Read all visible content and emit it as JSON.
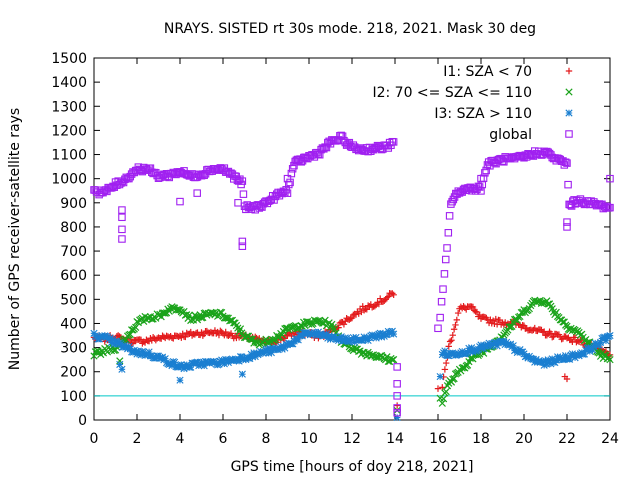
{
  "chart_data": {
    "type": "scatter",
    "title": "NRAYS. SISTED rt 30s mode. 218, 2021. Mask 30 deg",
    "xlabel": "GPS time [hours of doy 218, 2021]",
    "ylabel": "Number of GPS receiver-satellite rays",
    "xlim": [
      0,
      24
    ],
    "ylim": [
      0,
      1500
    ],
    "x_ticks": [
      "0",
      "2",
      "4",
      "6",
      "8",
      "10",
      "12",
      "14",
      "16",
      "18",
      "20",
      "22",
      "24"
    ],
    "y_ticks": [
      "0",
      "100",
      "200",
      "300",
      "400",
      "500",
      "600",
      "700",
      "800",
      "900",
      "1000",
      "1100",
      "1200",
      "1300",
      "1400",
      "1500"
    ],
    "reference_line": {
      "y": 100,
      "color": "#00c8c8"
    },
    "series": [
      {
        "name": "I1: SZA < 70",
        "color": "#e31a1c",
        "marker": "plus",
        "points": [
          [
            0,
            340
          ],
          [
            0.5,
            335
          ],
          [
            1,
            345
          ],
          [
            1.5,
            330
          ],
          [
            2,
            325
          ],
          [
            2.5,
            330
          ],
          [
            3,
            340
          ],
          [
            3.5,
            345
          ],
          [
            4,
            350
          ],
          [
            4.5,
            355
          ],
          [
            5,
            360
          ],
          [
            5.5,
            365
          ],
          [
            6,
            360
          ],
          [
            6.5,
            350
          ],
          [
            7,
            345
          ],
          [
            7.5,
            335
          ],
          [
            8,
            320
          ],
          [
            8.5,
            330
          ],
          [
            9,
            350
          ],
          [
            9.5,
            360
          ],
          [
            10,
            355
          ],
          [
            10.5,
            345
          ],
          [
            11,
            370
          ],
          [
            11.5,
            400
          ],
          [
            12,
            430
          ],
          [
            12.5,
            460
          ],
          [
            13,
            480
          ],
          [
            13.5,
            500
          ],
          [
            14,
            530
          ],
          [
            16.2,
            140
          ],
          [
            16.5,
            300
          ],
          [
            17,
            460
          ],
          [
            17.5,
            470
          ],
          [
            18,
            420
          ],
          [
            18.5,
            410
          ],
          [
            19,
            405
          ],
          [
            19.5,
            400
          ],
          [
            20,
            390
          ],
          [
            20.5,
            370
          ],
          [
            21,
            360
          ],
          [
            21.5,
            350
          ],
          [
            22,
            340
          ],
          [
            22.5,
            330
          ],
          [
            23,
            310
          ],
          [
            23.5,
            290
          ],
          [
            24,
            270
          ]
        ],
        "outliers": [
          [
            14.1,
            60
          ],
          [
            16.0,
            130
          ],
          [
            22,
            170
          ],
          [
            21.9,
            180
          ]
        ]
      },
      {
        "name": "I2: 70 <= SZA <= 110",
        "color": "#1aa31a",
        "marker": "cross",
        "points": [
          [
            0,
            270
          ],
          [
            0.5,
            285
          ],
          [
            1,
            300
          ],
          [
            1.5,
            340
          ],
          [
            2,
            400
          ],
          [
            2.5,
            425
          ],
          [
            3,
            430
          ],
          [
            3.5,
            460
          ],
          [
            4,
            465
          ],
          [
            4.5,
            420
          ],
          [
            5,
            430
          ],
          [
            5.5,
            440
          ],
          [
            6,
            435
          ],
          [
            6.5,
            400
          ],
          [
            7,
            350
          ],
          [
            7.5,
            320
          ],
          [
            8,
            325
          ],
          [
            8.5,
            345
          ],
          [
            9,
            375
          ],
          [
            9.5,
            390
          ],
          [
            10,
            400
          ],
          [
            10.5,
            410
          ],
          [
            11,
            395
          ],
          [
            11.5,
            330
          ],
          [
            12,
            300
          ],
          [
            12.5,
            280
          ],
          [
            13,
            270
          ],
          [
            13.5,
            255
          ],
          [
            14,
            245
          ],
          [
            16.2,
            80
          ],
          [
            16.5,
            150
          ],
          [
            17,
            200
          ],
          [
            17.5,
            250
          ],
          [
            18,
            280
          ],
          [
            18.5,
            310
          ],
          [
            19,
            350
          ],
          [
            19.5,
            400
          ],
          [
            20,
            450
          ],
          [
            20.5,
            490
          ],
          [
            21,
            495
          ],
          [
            21.5,
            440
          ],
          [
            22,
            390
          ],
          [
            22.5,
            365
          ],
          [
            23,
            320
          ],
          [
            23.5,
            275
          ],
          [
            24,
            250
          ]
        ],
        "outliers": [
          [
            1.2,
            245
          ],
          [
            14.1,
            40
          ],
          [
            16.1,
            90
          ]
        ]
      },
      {
        "name": "I3: SZA > 110",
        "color": "#1a7fd1",
        "marker": "star",
        "points": [
          [
            0,
            350
          ],
          [
            0.5,
            340
          ],
          [
            1,
            320
          ],
          [
            1.5,
            300
          ],
          [
            2,
            280
          ],
          [
            2.5,
            275
          ],
          [
            3,
            260
          ],
          [
            3.5,
            240
          ],
          [
            4,
            220
          ],
          [
            4.5,
            225
          ],
          [
            5,
            235
          ],
          [
            5.5,
            235
          ],
          [
            6,
            240
          ],
          [
            6.5,
            250
          ],
          [
            7,
            260
          ],
          [
            7.5,
            270
          ],
          [
            8,
            285
          ],
          [
            8.5,
            290
          ],
          [
            9,
            310
          ],
          [
            9.5,
            340
          ],
          [
            10,
            360
          ],
          [
            10.5,
            355
          ],
          [
            11,
            340
          ],
          [
            11.5,
            335
          ],
          [
            12,
            330
          ],
          [
            12.5,
            335
          ],
          [
            13,
            345
          ],
          [
            13.5,
            355
          ],
          [
            14,
            365
          ],
          [
            16.2,
            280
          ],
          [
            16.5,
            270
          ],
          [
            17,
            280
          ],
          [
            17.5,
            290
          ],
          [
            18,
            300
          ],
          [
            18.5,
            310
          ],
          [
            19,
            320
          ],
          [
            19.5,
            300
          ],
          [
            20,
            270
          ],
          [
            20.5,
            245
          ],
          [
            21,
            235
          ],
          [
            21.5,
            250
          ],
          [
            22,
            260
          ],
          [
            22.5,
            270
          ],
          [
            23,
            290
          ],
          [
            23.5,
            320
          ],
          [
            24,
            350
          ]
        ],
        "outliers": [
          [
            1.3,
            210
          ],
          [
            1.2,
            230
          ],
          [
            4.0,
            165
          ],
          [
            6.9,
            190
          ],
          [
            14.1,
            10
          ],
          [
            16.1,
            180
          ]
        ]
      },
      {
        "name": "global",
        "color": "#a020f0",
        "marker": "square",
        "points": [
          [
            0,
            960
          ],
          [
            0.3,
            940
          ],
          [
            0.6,
            950
          ],
          [
            1,
            975
          ],
          [
            1.5,
            1000
          ],
          [
            2,
            1040
          ],
          [
            2.5,
            1040
          ],
          [
            3,
            1010
          ],
          [
            3.5,
            1015
          ],
          [
            4,
            1030
          ],
          [
            4.5,
            1010
          ],
          [
            5,
            1020
          ],
          [
            5.5,
            1040
          ],
          [
            6,
            1040
          ],
          [
            6.5,
            1010
          ],
          [
            6.9,
            980
          ],
          [
            7,
            880
          ],
          [
            7.5,
            880
          ],
          [
            8,
            900
          ],
          [
            8.5,
            930
          ],
          [
            9,
            950
          ],
          [
            9.3,
            1060
          ],
          [
            9.7,
            1080
          ],
          [
            10,
            1090
          ],
          [
            10.5,
            1110
          ],
          [
            11,
            1150
          ],
          [
            11.5,
            1170
          ],
          [
            12,
            1130
          ],
          [
            12.5,
            1120
          ],
          [
            13,
            1125
          ],
          [
            13.5,
            1130
          ],
          [
            14,
            1150
          ],
          [
            16.1,
            420
          ],
          [
            16.3,
            600
          ],
          [
            16.6,
            900
          ],
          [
            17,
            950
          ],
          [
            17.5,
            960
          ],
          [
            18,
            960
          ],
          [
            18.3,
            1060
          ],
          [
            18.7,
            1070
          ],
          [
            19,
            1080
          ],
          [
            19.5,
            1080
          ],
          [
            20,
            1090
          ],
          [
            20.5,
            1105
          ],
          [
            21,
            1110
          ],
          [
            21.5,
            1080
          ],
          [
            22,
            1060
          ],
          [
            22.1,
            890
          ],
          [
            22.5,
            910
          ],
          [
            23,
            900
          ],
          [
            23.5,
            890
          ],
          [
            24,
            880
          ]
        ],
        "outliers": [
          [
            1.3,
            870
          ],
          [
            1.3,
            840
          ],
          [
            1.3,
            790
          ],
          [
            1.3,
            750
          ],
          [
            4.0,
            905
          ],
          [
            4.8,
            940
          ],
          [
            6.7,
            900
          ],
          [
            6.9,
            740
          ],
          [
            6.9,
            720
          ],
          [
            9.0,
            1000
          ],
          [
            14.1,
            220
          ],
          [
            14.1,
            150
          ],
          [
            14.1,
            100
          ],
          [
            14.1,
            50
          ],
          [
            14.1,
            30
          ],
          [
            16.0,
            380
          ],
          [
            18.0,
            1000
          ],
          [
            22.0,
            820
          ],
          [
            22.0,
            800
          ],
          [
            24.0,
            1000
          ]
        ]
      }
    ]
  }
}
